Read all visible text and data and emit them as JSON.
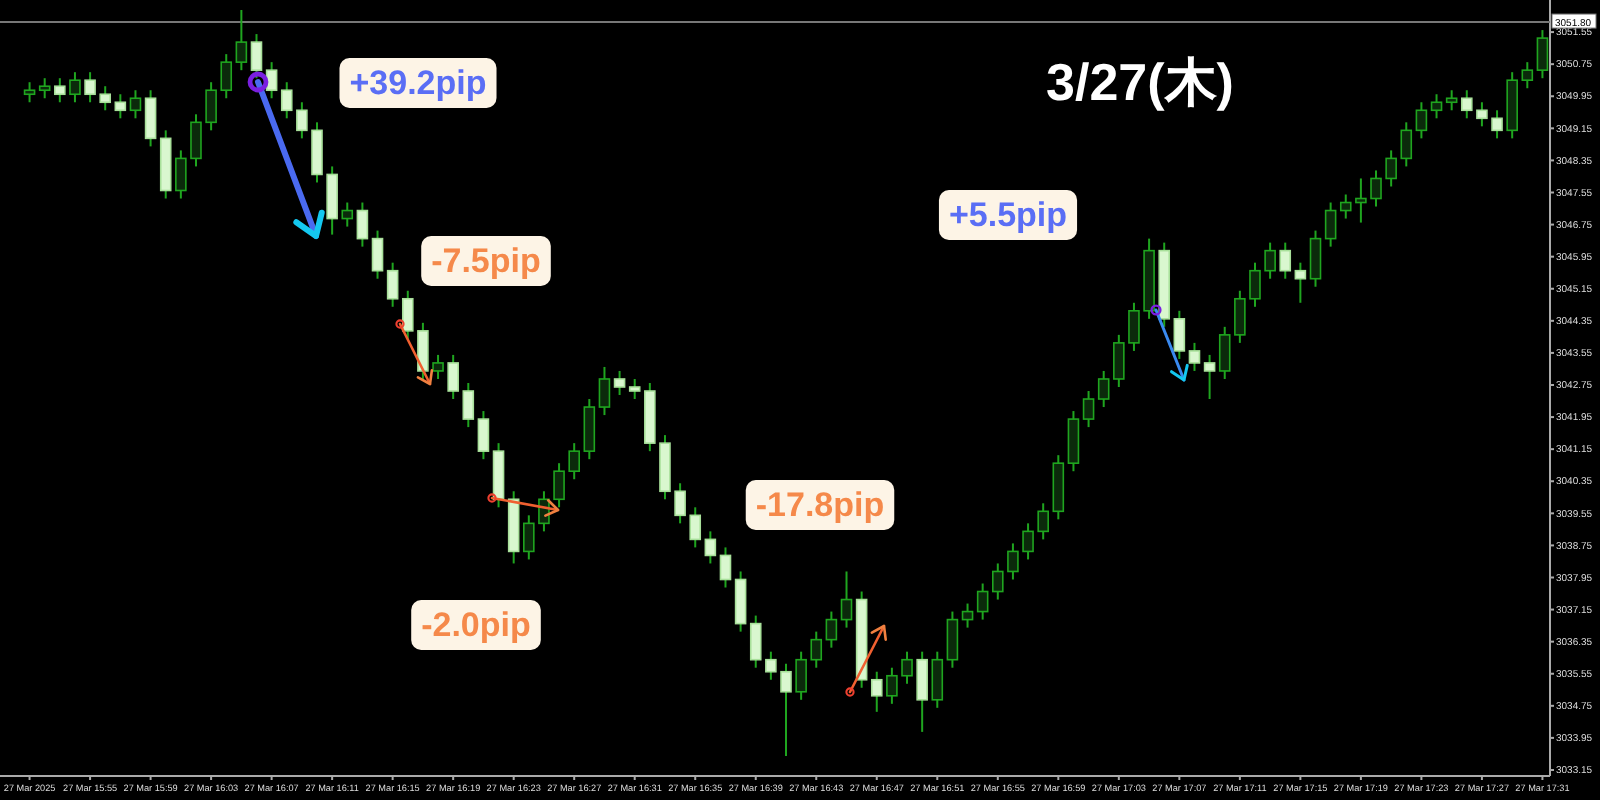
{
  "chart_data": {
    "type": "candlestick",
    "title": "3/27(木)",
    "annotations": [
      "+39.2pip",
      "-7.5pip",
      "-2.0pip",
      "-17.8pip",
      "+5.5pip"
    ],
    "categories": [
      "27 Mar 2025",
      null,
      null,
      null,
      "27 Mar 15:55",
      null,
      null,
      null,
      "27 Mar 15:59",
      null,
      null,
      null,
      "27 Mar 16:03",
      null,
      null,
      null,
      "27 Mar 16:07",
      null,
      null,
      null,
      "27 Mar 16:11",
      null,
      null,
      null,
      "27 Mar 16:15",
      null,
      null,
      null,
      "27 Mar 16:19",
      null,
      null,
      null,
      "27 Mar 16:23",
      null,
      null,
      null,
      "27 Mar 16:27",
      null,
      null,
      null,
      "27 Mar 16:31",
      null,
      null,
      null,
      "27 Mar 16:35",
      null,
      null,
      null,
      "27 Mar 16:39",
      null,
      null,
      null,
      "27 Mar 16:43",
      null,
      null,
      null,
      "27 Mar 16:47",
      null,
      null,
      null,
      "27 Mar 16:51",
      null,
      null,
      null,
      "27 Mar 16:55",
      null,
      null,
      null,
      "27 Mar 16:59",
      null,
      null,
      null,
      "27 Mar 17:03",
      null,
      null,
      null,
      "27 Mar 17:07",
      null,
      null,
      null,
      "27 Mar 17:11",
      null,
      null,
      null,
      "27 Mar 17:15",
      null,
      null,
      null,
      "27 Mar 17:19",
      null,
      null,
      null,
      "27 Mar 17:23",
      null,
      null,
      null,
      "27 Mar 17:27",
      null,
      null,
      null,
      "27 Mar 17:31"
    ],
    "ohlc": [
      [
        3050.0,
        3050.3,
        3049.8,
        3050.1
      ],
      [
        3050.1,
        3050.4,
        3049.9,
        3050.2
      ],
      [
        3050.2,
        3050.4,
        3049.8,
        3050.0
      ],
      [
        3050.0,
        3050.55,
        3049.8,
        3050.35
      ],
      [
        3050.35,
        3050.55,
        3049.8,
        3050.0
      ],
      [
        3050.0,
        3050.2,
        3049.6,
        3049.8
      ],
      [
        3049.8,
        3050.0,
        3049.4,
        3049.6
      ],
      [
        3049.6,
        3050.1,
        3049.4,
        3049.9
      ],
      [
        3049.9,
        3050.1,
        3048.7,
        3048.9
      ],
      [
        3048.9,
        3049.1,
        3047.4,
        3047.6
      ],
      [
        3047.6,
        3048.6,
        3047.4,
        3048.4
      ],
      [
        3048.4,
        3049.5,
        3048.2,
        3049.3
      ],
      [
        3049.3,
        3050.3,
        3049.1,
        3050.1
      ],
      [
        3050.1,
        3051.0,
        3049.9,
        3050.8
      ],
      [
        3050.8,
        3052.1,
        3050.6,
        3051.3
      ],
      [
        3051.3,
        3051.5,
        3050.4,
        3050.6
      ],
      [
        3050.6,
        3050.8,
        3049.9,
        3050.1
      ],
      [
        3050.1,
        3050.3,
        3049.4,
        3049.6
      ],
      [
        3049.6,
        3049.8,
        3048.9,
        3049.1
      ],
      [
        3049.1,
        3049.3,
        3047.8,
        3048.0
      ],
      [
        3048.0,
        3048.2,
        3046.5,
        3046.9
      ],
      [
        3046.9,
        3047.3,
        3046.7,
        3047.1
      ],
      [
        3047.1,
        3047.3,
        3046.2,
        3046.4
      ],
      [
        3046.4,
        3046.6,
        3045.4,
        3045.6
      ],
      [
        3045.6,
        3045.8,
        3044.7,
        3044.9
      ],
      [
        3044.9,
        3045.1,
        3043.9,
        3044.1
      ],
      [
        3044.1,
        3044.3,
        3042.9,
        3043.1
      ],
      [
        3043.1,
        3043.5,
        3042.9,
        3043.3
      ],
      [
        3043.3,
        3043.5,
        3042.4,
        3042.6
      ],
      [
        3042.6,
        3042.8,
        3041.7,
        3041.9
      ],
      [
        3041.9,
        3042.1,
        3040.9,
        3041.1
      ],
      [
        3041.1,
        3041.3,
        3039.7,
        3039.9
      ],
      [
        3039.9,
        3040.1,
        3038.3,
        3038.6
      ],
      [
        3038.6,
        3039.5,
        3038.4,
        3039.3
      ],
      [
        3039.3,
        3040.1,
        3039.1,
        3039.9
      ],
      [
        3039.9,
        3040.8,
        3039.7,
        3040.6
      ],
      [
        3040.6,
        3041.3,
        3040.4,
        3041.1
      ],
      [
        3041.1,
        3042.4,
        3040.9,
        3042.2
      ],
      [
        3042.2,
        3043.2,
        3042.0,
        3042.9
      ],
      [
        3042.9,
        3043.1,
        3042.5,
        3042.7
      ],
      [
        3042.7,
        3042.9,
        3042.4,
        3042.6
      ],
      [
        3042.6,
        3042.8,
        3041.1,
        3041.3
      ],
      [
        3041.3,
        3041.5,
        3039.9,
        3040.1
      ],
      [
        3040.1,
        3040.3,
        3039.3,
        3039.5
      ],
      [
        3039.5,
        3039.7,
        3038.7,
        3038.9
      ],
      [
        3038.9,
        3039.1,
        3038.3,
        3038.5
      ],
      [
        3038.5,
        3038.7,
        3037.7,
        3037.9
      ],
      [
        3037.9,
        3038.1,
        3036.6,
        3036.8
      ],
      [
        3036.8,
        3037.0,
        3035.7,
        3035.9
      ],
      [
        3035.9,
        3036.1,
        3035.4,
        3035.6
      ],
      [
        3035.6,
        3035.8,
        3033.5,
        3035.1
      ],
      [
        3035.1,
        3036.1,
        3034.9,
        3035.9
      ],
      [
        3035.9,
        3036.6,
        3035.7,
        3036.4
      ],
      [
        3036.4,
        3037.1,
        3036.2,
        3036.9
      ],
      [
        3036.9,
        3038.1,
        3036.7,
        3037.4
      ],
      [
        3037.4,
        3037.6,
        3035.2,
        3035.4
      ],
      [
        3035.4,
        3035.6,
        3034.6,
        3035.0
      ],
      [
        3035.0,
        3035.7,
        3034.8,
        3035.5
      ],
      [
        3035.5,
        3036.1,
        3035.3,
        3035.9
      ],
      [
        3035.9,
        3036.1,
        3034.1,
        3034.9
      ],
      [
        3034.9,
        3036.1,
        3034.7,
        3035.9
      ],
      [
        3035.9,
        3037.1,
        3035.7,
        3036.9
      ],
      [
        3036.9,
        3037.3,
        3036.7,
        3037.1
      ],
      [
        3037.1,
        3037.8,
        3036.9,
        3037.6
      ],
      [
        3037.6,
        3038.3,
        3037.4,
        3038.1
      ],
      [
        3038.1,
        3038.8,
        3037.9,
        3038.6
      ],
      [
        3038.6,
        3039.3,
        3038.4,
        3039.1
      ],
      [
        3039.1,
        3039.8,
        3038.9,
        3039.6
      ],
      [
        3039.6,
        3041.0,
        3039.4,
        3040.8
      ],
      [
        3040.8,
        3042.1,
        3040.6,
        3041.9
      ],
      [
        3041.9,
        3042.6,
        3041.7,
        3042.4
      ],
      [
        3042.4,
        3043.1,
        3042.2,
        3042.9
      ],
      [
        3042.9,
        3044.0,
        3042.7,
        3043.8
      ],
      [
        3043.8,
        3044.8,
        3043.6,
        3044.6
      ],
      [
        3044.6,
        3046.4,
        3044.4,
        3046.1
      ],
      [
        3046.1,
        3046.3,
        3044.2,
        3044.4
      ],
      [
        3044.4,
        3044.6,
        3043.4,
        3043.6
      ],
      [
        3043.6,
        3043.8,
        3043.1,
        3043.3
      ],
      [
        3043.3,
        3043.5,
        3042.4,
        3043.1
      ],
      [
        3043.1,
        3044.2,
        3042.9,
        3044.0
      ],
      [
        3044.0,
        3045.1,
        3043.8,
        3044.9
      ],
      [
        3044.9,
        3045.8,
        3044.7,
        3045.6
      ],
      [
        3045.6,
        3046.3,
        3045.4,
        3046.1
      ],
      [
        3046.1,
        3046.3,
        3045.4,
        3045.6
      ],
      [
        3045.6,
        3045.8,
        3044.8,
        3045.4
      ],
      [
        3045.4,
        3046.6,
        3045.2,
        3046.4
      ],
      [
        3046.4,
        3047.3,
        3046.2,
        3047.1
      ],
      [
        3047.1,
        3047.5,
        3046.9,
        3047.3
      ],
      [
        3047.3,
        3047.9,
        3046.8,
        3047.4
      ],
      [
        3047.4,
        3048.1,
        3047.2,
        3047.9
      ],
      [
        3047.9,
        3048.6,
        3047.7,
        3048.4
      ],
      [
        3048.4,
        3049.3,
        3048.2,
        3049.1
      ],
      [
        3049.1,
        3049.8,
        3048.9,
        3049.6
      ],
      [
        3049.6,
        3050.0,
        3049.4,
        3049.8
      ],
      [
        3049.8,
        3050.1,
        3049.6,
        3049.9
      ],
      [
        3049.9,
        3050.1,
        3049.4,
        3049.6
      ],
      [
        3049.6,
        3049.8,
        3049.2,
        3049.4
      ],
      [
        3049.4,
        3049.6,
        3048.9,
        3049.1
      ],
      [
        3049.1,
        3050.55,
        3048.9,
        3050.35
      ],
      [
        3050.35,
        3050.8,
        3050.15,
        3050.6
      ],
      [
        3050.6,
        3051.6,
        3050.4,
        3051.4
      ]
    ],
    "ylim": [
      3033.0,
      3052.35
    ],
    "yticks": [
      3051.55,
      3050.75,
      3049.95,
      3049.15,
      3048.35,
      3047.55,
      3046.75,
      3045.95,
      3045.15,
      3044.35,
      3043.55,
      3042.75,
      3041.95,
      3041.15,
      3040.35,
      3039.55,
      3038.75,
      3037.95,
      3037.15,
      3036.35,
      3035.55,
      3034.75,
      3033.95,
      3033.15
    ],
    "ref_lines": [
      {
        "axis": "y",
        "value": 3051.8,
        "label": "3051.80",
        "color": "#777777"
      }
    ]
  }
}
